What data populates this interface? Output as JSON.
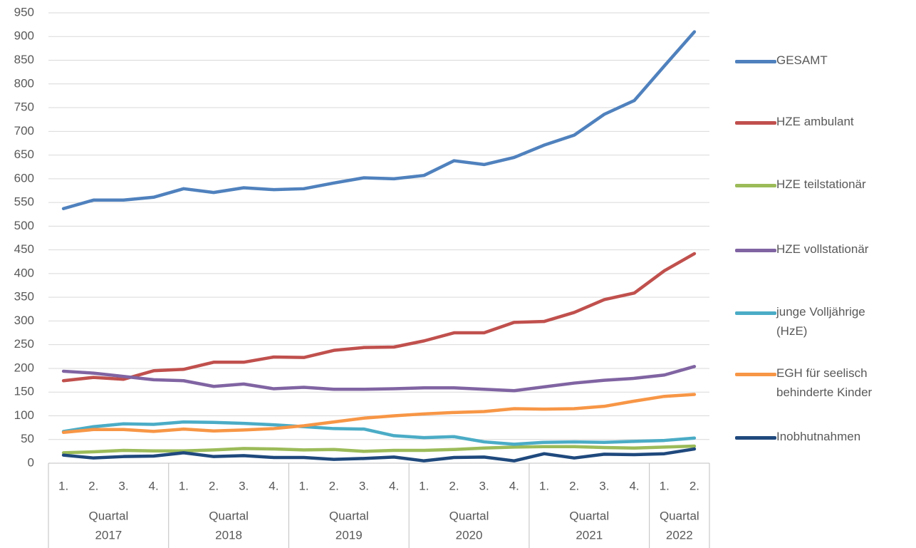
{
  "chart_data": {
    "type": "line",
    "ylim": [
      0,
      950
    ],
    "yticks": [
      0,
      50,
      100,
      150,
      200,
      250,
      300,
      350,
      400,
      450,
      500,
      550,
      600,
      650,
      700,
      750,
      800,
      850,
      900,
      950
    ],
    "grid": true,
    "legend": "right",
    "category_groups": [
      {
        "label": [
          "Quartal",
          "2017"
        ],
        "categories": [
          "1.",
          "2.",
          "3.",
          "4."
        ]
      },
      {
        "label": [
          "Quartal",
          "2018"
        ],
        "categories": [
          "1.",
          "2.",
          "3.",
          "4."
        ]
      },
      {
        "label": [
          "Quartal",
          "2019"
        ],
        "categories": [
          "1.",
          "2.",
          "3.",
          "4."
        ]
      },
      {
        "label": [
          "Quartal",
          "2020"
        ],
        "categories": [
          "1.",
          "2.",
          "3.",
          "4."
        ]
      },
      {
        "label": [
          "Quartal",
          "2021"
        ],
        "categories": [
          "1.",
          "2.",
          "3.",
          "4."
        ]
      },
      {
        "label": [
          "Quartal",
          "2022"
        ],
        "categories": [
          "1.",
          "2."
        ]
      }
    ],
    "series": [
      {
        "name": "GESAMT",
        "color": "#4f81bd",
        "values": [
          537,
          555,
          555,
          561,
          579,
          571,
          581,
          577,
          579,
          591,
          602,
          600,
          607,
          638,
          630,
          645,
          671,
          692,
          736,
          765,
          838,
          910
        ]
      },
      {
        "name": "HZE ambulant",
        "color": "#c0504d",
        "values": [
          174,
          181,
          177,
          195,
          198,
          213,
          213,
          224,
          223,
          238,
          244,
          245,
          258,
          275,
          275,
          297,
          299,
          318,
          345,
          359,
          406,
          442
        ]
      },
      {
        "name": "HZE teilstationär",
        "color": "#9bbb59",
        "values": [
          22,
          24,
          27,
          26,
          26,
          28,
          31,
          30,
          28,
          29,
          25,
          27,
          27,
          29,
          32,
          34,
          35,
          35,
          33,
          32,
          34,
          36
        ]
      },
      {
        "name": "HZE vollstationär",
        "color": "#8064a2",
        "values": [
          194,
          190,
          183,
          176,
          174,
          162,
          167,
          157,
          160,
          156,
          156,
          157,
          159,
          159,
          156,
          153,
          161,
          169,
          175,
          179,
          186,
          204
        ]
      },
      {
        "name": "junge Volljährige (HzE)",
        "color": "#4bacc6",
        "values": [
          67,
          77,
          83,
          82,
          87,
          86,
          84,
          81,
          77,
          73,
          72,
          58,
          54,
          56,
          45,
          40,
          44,
          45,
          44,
          46,
          48,
          53
        ]
      },
      {
        "name": "EGH für seelisch behinderte Kinder",
        "color": "#f79646",
        "values": [
          65,
          71,
          71,
          67,
          72,
          68,
          70,
          73,
          79,
          87,
          95,
          100,
          104,
          107,
          109,
          115,
          114,
          115,
          120,
          131,
          141,
          145
        ]
      },
      {
        "name": "Inobhutnahmen",
        "color": "#1f497d",
        "values": [
          17,
          11,
          14,
          15,
          22,
          14,
          16,
          12,
          12,
          8,
          10,
          13,
          5,
          12,
          13,
          5,
          20,
          11,
          19,
          18,
          20,
          30
        ]
      }
    ]
  }
}
